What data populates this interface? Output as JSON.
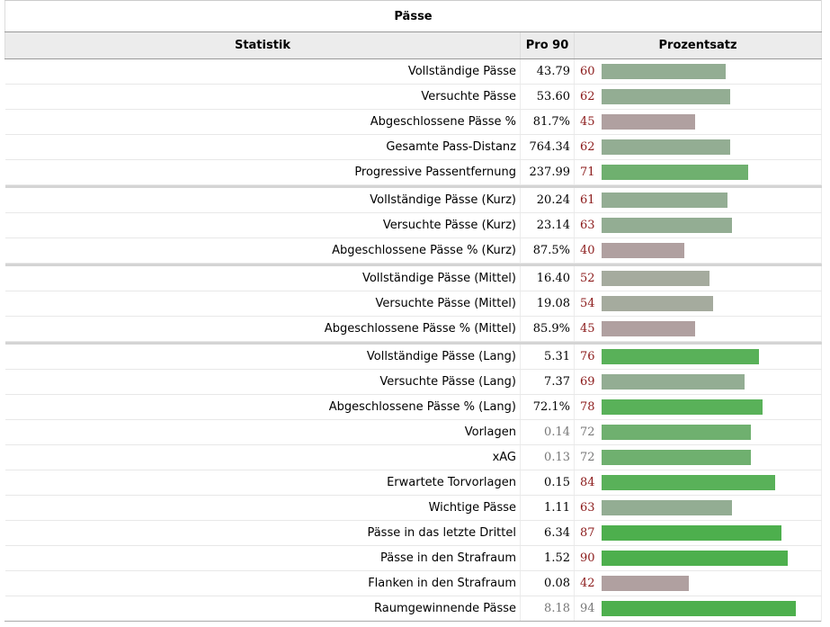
{
  "caption": "Pässe",
  "headers": {
    "stat": "Statistik",
    "per90": "Pro 90",
    "pct": "Prozentsatz"
  },
  "colors": {
    "high": "#4daf4d",
    "mid": "#a5ab9e",
    "low": "#b0a0a0",
    "pct_text": "#8b1a1a"
  },
  "groups": [
    [
      {
        "name": "Vollständige Pässe",
        "per90": "43.79",
        "pct": 60
      },
      {
        "name": "Versuchte Pässe",
        "per90": "53.60",
        "pct": 62
      },
      {
        "name": "Abgeschlossene Pässe %",
        "per90": "81.7%",
        "pct": 45
      },
      {
        "name": "Gesamte Pass-Distanz",
        "per90": "764.34",
        "pct": 62
      },
      {
        "name": "Progressive Passentfernung",
        "per90": "237.99",
        "pct": 71
      }
    ],
    [
      {
        "name": "Vollständige Pässe (Kurz)",
        "per90": "20.24",
        "pct": 61
      },
      {
        "name": "Versuchte Pässe (Kurz)",
        "per90": "23.14",
        "pct": 63
      },
      {
        "name": "Abgeschlossene Pässe % (Kurz)",
        "per90": "87.5%",
        "pct": 40
      }
    ],
    [
      {
        "name": "Vollständige Pässe (Mittel)",
        "per90": "16.40",
        "pct": 52
      },
      {
        "name": "Versuchte Pässe (Mittel)",
        "per90": "19.08",
        "pct": 54
      },
      {
        "name": "Abgeschlossene Pässe % (Mittel)",
        "per90": "85.9%",
        "pct": 45
      }
    ],
    [
      {
        "name": "Vollständige Pässe (Lang)",
        "per90": "5.31",
        "pct": 76
      },
      {
        "name": "Versuchte Pässe (Lang)",
        "per90": "7.37",
        "pct": 69
      },
      {
        "name": "Abgeschlossene Pässe % (Lang)",
        "per90": "72.1%",
        "pct": 78
      },
      {
        "name": "Vorlagen",
        "per90": "0.14",
        "pct": 72,
        "grey": true
      },
      {
        "name": "xAG",
        "per90": "0.13",
        "pct": 72,
        "grey": true
      },
      {
        "name": "Erwartete Torvorlagen",
        "per90": "0.15",
        "pct": 84
      },
      {
        "name": "Wichtige Pässe",
        "per90": "1.11",
        "pct": 63
      },
      {
        "name": "Pässe in das letzte Drittel",
        "per90": "6.34",
        "pct": 87
      },
      {
        "name": "Pässe in den Strafraum",
        "per90": "1.52",
        "pct": 90
      },
      {
        "name": "Flanken in den Strafraum",
        "per90": "0.08",
        "pct": 42
      },
      {
        "name": "Raumgewinnende Pässe",
        "per90": "8.18",
        "pct": 94,
        "grey": true
      }
    ]
  ]
}
